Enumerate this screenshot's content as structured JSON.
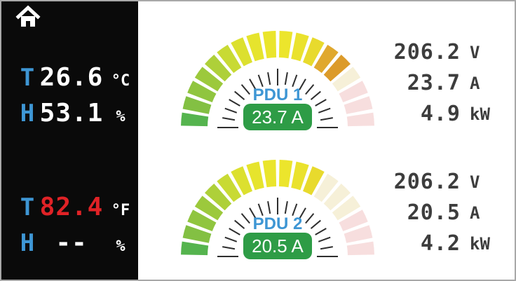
{
  "sidebar": {
    "celsius_group": {
      "temp_label": "T",
      "temp_value": "26.6",
      "temp_unit": "°C",
      "humidity_label": "H",
      "humidity_value": "53.1",
      "humidity_unit": "%"
    },
    "fahrenheit_group": {
      "temp_label": "T",
      "temp_value": "82.4",
      "temp_unit": "°F",
      "humidity_label": "H",
      "humidity_value": "--",
      "humidity_unit": "%"
    }
  },
  "gauges": [
    {
      "label": "PDU 1",
      "badge": "23.7 A",
      "value": 23.7,
      "unit": "A",
      "segments_total": 18,
      "segments_filled": 14,
      "segment_colors": [
        "#55b44e",
        "#83c043",
        "#90c53f",
        "#9cc93c",
        "#aed039",
        "#c8da34",
        "#dce02f",
        "#e6e42d",
        "#eae52c",
        "#ece52c",
        "#eae22d",
        "#e8da2d",
        "#e0a82e",
        "#dc9b2a",
        "#f6f0d8",
        "#f7dede",
        "#f7dede",
        "#f7dede"
      ]
    },
    {
      "label": "PDU 2",
      "badge": "20.5 A",
      "value": 20.5,
      "unit": "A",
      "segments_total": 18,
      "segments_filled": 12,
      "segment_colors": [
        "#55b44e",
        "#83c043",
        "#90c53f",
        "#9cc93c",
        "#aed039",
        "#c8da34",
        "#dce02f",
        "#e6e42d",
        "#eae52c",
        "#ece52c",
        "#eae22d",
        "#e8da2d",
        "#f6f0d8",
        "#f6f0d8",
        "#f6f0d8",
        "#f7dede",
        "#f7dede",
        "#f7dede"
      ]
    }
  ],
  "readouts": [
    {
      "rows": [
        {
          "value": "206.2",
          "unit": "V"
        },
        {
          "value": "23.7",
          "unit": "A"
        },
        {
          "value": "4.9",
          "unit": "kW"
        }
      ]
    },
    {
      "rows": [
        {
          "value": "206.2",
          "unit": "V"
        },
        {
          "value": "20.5",
          "unit": "A"
        },
        {
          "value": "4.2",
          "unit": "kW"
        }
      ]
    }
  ],
  "colors": {
    "accent_blue": "#3e96d4",
    "badge_green": "#2e9c46",
    "alert_red": "#e02226",
    "readout_gray": "#3d3d3d",
    "tick": "#2e2e2e",
    "panel_bg": "#0a0a0a",
    "frame_border": "#a8a8a8"
  }
}
